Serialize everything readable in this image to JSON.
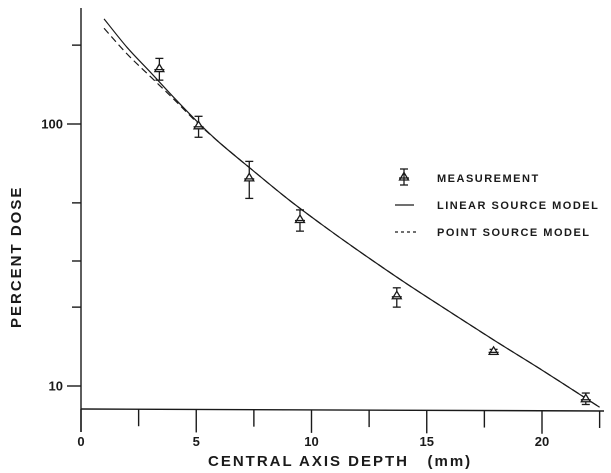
{
  "chart_data": {
    "type": "line",
    "title": "",
    "xlabel": "CENTRAL AXIS DEPTH (mm)",
    "ylabel": "PERCENT DOSE",
    "xlim": [
      0,
      22.5
    ],
    "ylim": [
      8,
      260
    ],
    "yscale": "log",
    "grid": false,
    "legend_position": "right-middle",
    "x_ticks": [
      0,
      2.5,
      5,
      7.5,
      10,
      12.5,
      15,
      17.5,
      20,
      22.5
    ],
    "x_tick_labels": [
      "0",
      "",
      "5",
      "",
      "10",
      "",
      "15",
      "",
      "20",
      ""
    ],
    "y_ticks": [
      10,
      20,
      30,
      50,
      100,
      200
    ],
    "y_tick_labels": [
      "10",
      "",
      "",
      "",
      "100",
      ""
    ],
    "series": [
      {
        "name": "MEASUREMENT",
        "style": "triangle-marker-with-errorbars",
        "x": [
          3.4,
          5.1,
          7.3,
          9.5,
          13.7,
          17.9,
          21.9
        ],
        "y": [
          162,
          98,
          62,
          43,
          22,
          13.5,
          8.9
        ],
        "err_low": [
          147,
          89,
          52,
          39,
          20,
          13.2,
          8.5
        ],
        "err_high": [
          178,
          107,
          72,
          47,
          23.7,
          13.8,
          9.4
        ]
      },
      {
        "name": "LINEAR SOURCE MODEL",
        "style": "solid",
        "x": [
          1.0,
          2.0,
          3.0,
          4.0,
          5.0,
          6.0,
          7.5,
          9.0,
          10.5,
          12.0,
          14.0,
          16.0,
          18.0,
          20.0,
          22.5
        ],
        "y": [
          252,
          196,
          158,
          127,
          103,
          85,
          66,
          51.5,
          41,
          33,
          25,
          19.2,
          14.8,
          11.5,
          8.3
        ]
      },
      {
        "name": "POINT SOURCE MODEL",
        "style": "dashed",
        "x": [
          1.0,
          2.0,
          3.0,
          4.0,
          5.0,
          6.0,
          7.5,
          9.0,
          10.5,
          12.0,
          14.0,
          16.0,
          18.0,
          20.0,
          22.5
        ],
        "y": [
          232,
          185,
          152,
          125,
          102,
          85,
          66,
          51.5,
          41,
          33,
          25,
          19.2,
          14.8,
          11.5,
          8.3
        ]
      }
    ]
  },
  "legend": {
    "items": [
      {
        "label": "MEASUREMENT",
        "symbol": "triangle-errorbar"
      },
      {
        "label": "LINEAR SOURCE MODEL",
        "symbol": "solid-line"
      },
      {
        "label": "POINT SOURCE MODEL",
        "symbol": "dashed-line"
      }
    ]
  },
  "axes": {
    "x_title": "CENTRAL AXIS DEPTH   (mm)",
    "y_title": "PERCENT DOSE"
  },
  "colors": {
    "ink": "#1a1a1a",
    "background": "#ffffff"
  }
}
